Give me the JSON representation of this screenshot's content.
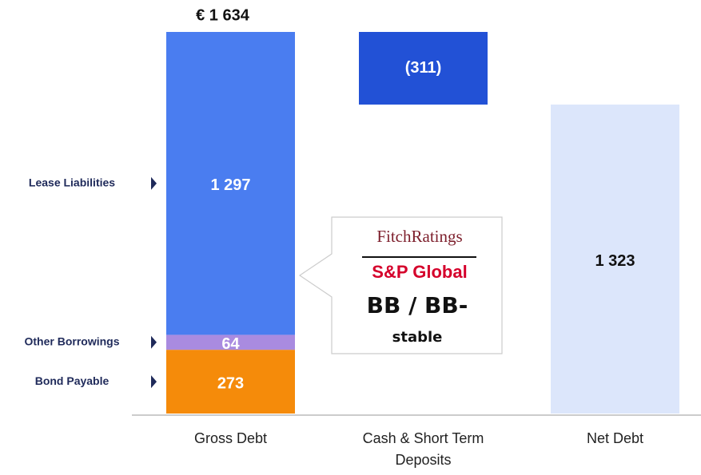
{
  "chart_data": {
    "type": "waterfall",
    "categories": [
      "Gross Debt",
      "Cash & Short Term Deposits",
      "Net Debt"
    ],
    "gross": {
      "total": 1634,
      "total_label": "€ 1 634",
      "segments": [
        {
          "name": "Bond Payable",
          "color": "#f58b0a",
          "value": 273,
          "value_label": "273"
        },
        {
          "name": "Other Borrowings",
          "color": "#a98be0",
          "value": 64,
          "value_label": "64"
        },
        {
          "name": "Lease Liabilities",
          "color": "#4a7df0",
          "value": 1297,
          "value_label": "1 297"
        }
      ]
    },
    "cash": {
      "value": -311,
      "value_label": "(311)",
      "color": "#2251d6"
    },
    "net": {
      "value": 1323,
      "value_label": "1 323",
      "color": "#dce6fb"
    },
    "callout": {
      "agency_1": "FitchRatings",
      "agency_2": "S&P Global",
      "rating": "BB / BB-",
      "outlook": "stable"
    }
  }
}
